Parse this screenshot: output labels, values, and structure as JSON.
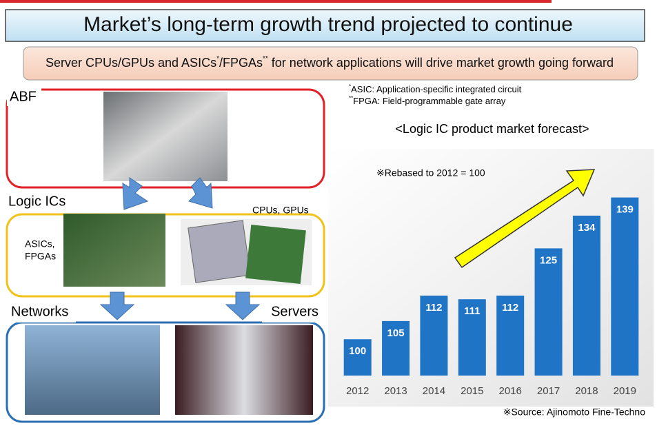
{
  "title": "Market’s long-term growth trend projected to continue",
  "subtitle_parts": [
    "Server CPUs/GPUs and ASICs",
    "*",
    "/FPGAs",
    "**",
    " for network applications will drive market growth going forward"
  ],
  "footnotes": [
    {
      "mark": "*",
      "text": "ASIC: Application-specific integrated circuit"
    },
    {
      "mark": "**",
      "text": "FPGA: Field-programmable gate array"
    }
  ],
  "panels": {
    "abf": "ABF",
    "logic_ics": "Logic ICs",
    "asics": [
      "ASICs,",
      "FPGAs"
    ],
    "cpus": "CPUs, GPUs",
    "networks": "Networks",
    "servers": "Servers"
  },
  "chart_data": {
    "type": "bar",
    "title": "<Logic IC product market forecast>",
    "annotation": "※Rebased to 2012 = 100",
    "source": "※Source: Ajinomoto Fine-Techno",
    "categories": [
      "2012",
      "2013",
      "2014",
      "2015",
      "2016",
      "2017",
      "2018",
      "2019"
    ],
    "values": [
      100,
      105,
      112,
      111,
      112,
      125,
      134,
      139
    ],
    "color": "#1f74c6",
    "ylim": [
      90,
      152
    ]
  }
}
